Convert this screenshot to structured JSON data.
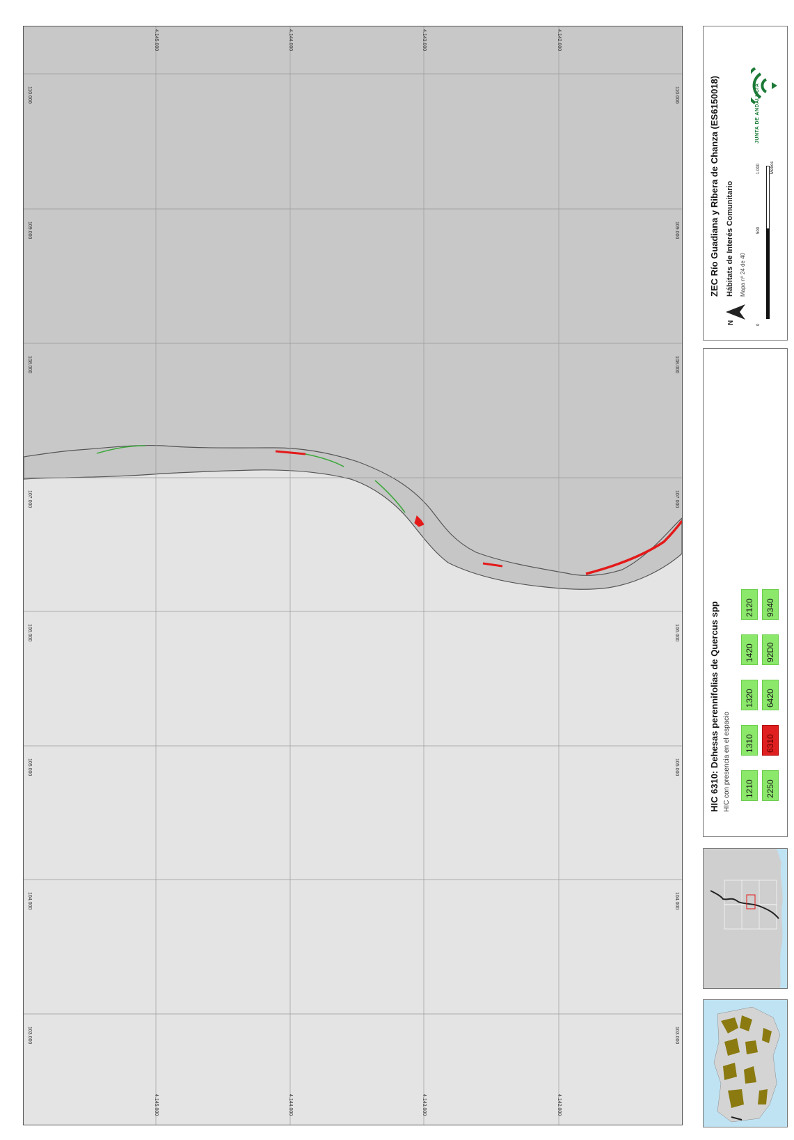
{
  "map": {
    "colors": {
      "land_north": "#c8c8c8",
      "land_south": "#e4e4e4",
      "grid": "#9a9a9a",
      "boundary": "#555555",
      "habitat_present": "#3da83d",
      "habitat_6310": "#e41a1a"
    },
    "easting_ticks": [
      "4.145.000",
      "4.144.000",
      "4.143.000",
      "4.142.000"
    ],
    "northing_ticks": [
      "110.000",
      "109.000",
      "108.000",
      "107.000",
      "106.000",
      "105.000",
      "104.000",
      "103.000"
    ]
  },
  "title_panel": {
    "title": "ZEC Río Guadiana y Ribera de Chanza (ES6150018)",
    "subtitle": "Hábitats de Interés Comunitario",
    "map_number": "Mapa nº 24 de 40",
    "north_label": "N",
    "scale": {
      "labels": [
        "0",
        "500",
        "1.000"
      ],
      "unit": "Metros"
    },
    "logo": {
      "name": "junta-de-andalucia-logo",
      "text": "JUNTA DE ANDALUCIA"
    }
  },
  "legend": {
    "title": "HIC 6310: Dehesas perennifolias de Quercus spp",
    "subtitle": "HIC con presencia en el espacio",
    "codes_row1": [
      "1210",
      "1310",
      "1320",
      "1420",
      "2120"
    ],
    "codes_row2": [
      "2250",
      "6310",
      "6420",
      "92D0",
      "9340"
    ],
    "highlight_code": "6310"
  },
  "locators": {
    "detail_icon": "locator-detail-icon",
    "region_icon": "locator-region-icon"
  }
}
